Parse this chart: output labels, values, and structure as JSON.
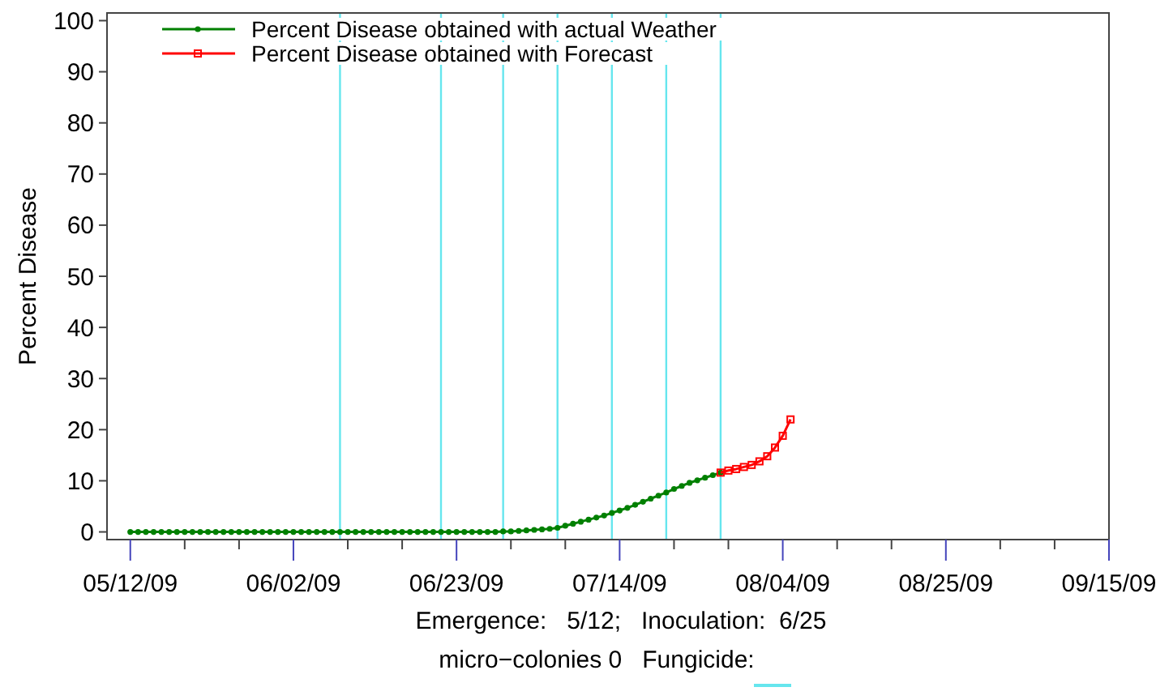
{
  "chart_data": {
    "type": "line",
    "ylabel": "Percent Disease",
    "xlim": [
      "--05-09",
      "--09-15"
    ],
    "ylim": [
      -1.5,
      101.5
    ],
    "xticks": [
      {
        "value": "--05-12",
        "label": "05/12/09"
      },
      {
        "value": "--05-19",
        "label": null
      },
      {
        "value": "--05-26",
        "label": null
      },
      {
        "value": "--06-02",
        "label": "06/02/09"
      },
      {
        "value": "--06-09",
        "label": null
      },
      {
        "value": "--06-16",
        "label": null
      },
      {
        "value": "--06-23",
        "label": "06/23/09"
      },
      {
        "value": "--06-30",
        "label": null
      },
      {
        "value": "--07-07",
        "label": null
      },
      {
        "value": "--07-14",
        "label": "07/14/09"
      },
      {
        "value": "--07-21",
        "label": null
      },
      {
        "value": "--07-28",
        "label": null
      },
      {
        "value": "--08-04",
        "label": "08/04/09"
      },
      {
        "value": "--08-11",
        "label": null
      },
      {
        "value": "--08-18",
        "label": null
      },
      {
        "value": "--08-25",
        "label": "08/25/09"
      },
      {
        "value": "--09-01",
        "label": null
      },
      {
        "value": "--09-08",
        "label": null
      },
      {
        "value": "--09-15",
        "label": "09/15/09"
      }
    ],
    "yticks": [
      0,
      10,
      20,
      30,
      40,
      50,
      60,
      70,
      80,
      90,
      100
    ],
    "legend": "top left",
    "grid": false,
    "series": [
      {
        "name": "Percent Disease obtained with actual Weather",
        "color": "#008000",
        "marker": "circle",
        "x": [
          "--05-12",
          "--05-13",
          "--05-14",
          "--05-15",
          "--05-16",
          "--05-17",
          "--05-18",
          "--05-19",
          "--05-20",
          "--05-21",
          "--05-22",
          "--05-23",
          "--05-24",
          "--05-25",
          "--05-26",
          "--05-27",
          "--05-28",
          "--05-29",
          "--05-30",
          "--05-31",
          "--06-01",
          "--06-02",
          "--06-03",
          "--06-04",
          "--06-05",
          "--06-06",
          "--06-07",
          "--06-08",
          "--06-09",
          "--06-10",
          "--06-11",
          "--06-12",
          "--06-13",
          "--06-14",
          "--06-15",
          "--06-16",
          "--06-17",
          "--06-18",
          "--06-19",
          "--06-20",
          "--06-21",
          "--06-22",
          "--06-23",
          "--06-24",
          "--06-25",
          "--06-26",
          "--06-27",
          "--06-28",
          "--06-29",
          "--06-30",
          "--07-01",
          "--07-02",
          "--07-03",
          "--07-04",
          "--07-05",
          "--07-06",
          "--07-07",
          "--07-08",
          "--07-09",
          "--07-10",
          "--07-11",
          "--07-12",
          "--07-13",
          "--07-14",
          "--07-15",
          "--07-16",
          "--07-17",
          "--07-18",
          "--07-19",
          "--07-20",
          "--07-21",
          "--07-22",
          "--07-23",
          "--07-24",
          "--07-25",
          "--07-26",
          "--07-27"
        ],
        "values": [
          0,
          0,
          0,
          0,
          0,
          0,
          0,
          0,
          0,
          0,
          0,
          0,
          0,
          0,
          0,
          0,
          0,
          0,
          0,
          0,
          0,
          0,
          0,
          0,
          0,
          0,
          0,
          0,
          0,
          0,
          0,
          0,
          0,
          0,
          0,
          0,
          0,
          0,
          0,
          0,
          0,
          0,
          0,
          0,
          0,
          0,
          0,
          0,
          0.1,
          0.1,
          0.2,
          0.3,
          0.4,
          0.5,
          0.6,
          0.8,
          1.2,
          1.6,
          2.0,
          2.4,
          2.8,
          3.2,
          3.7,
          4.2,
          4.7,
          5.3,
          5.9,
          6.5,
          7.1,
          7.7,
          8.4,
          9.0,
          9.6,
          10.1,
          10.6,
          11.1,
          11.6
        ]
      },
      {
        "name": "Percent Disease obtained with Forecast",
        "color": "#ff0000",
        "marker": "square",
        "x": [
          "--07-27",
          "--07-28",
          "--07-29",
          "--07-30",
          "--07-31",
          "--08-01",
          "--08-02",
          "--08-03",
          "--08-04",
          "--08-05"
        ],
        "values": [
          11.6,
          12.0,
          12.3,
          12.7,
          13.1,
          13.8,
          14.8,
          16.5,
          18.8,
          22
        ]
      }
    ],
    "ref_lines": [
      {
        "axis": "x",
        "value": "--06-08",
        "color": "#66e6ee"
      },
      {
        "axis": "x",
        "value": "--06-21",
        "color": "#66e6ee"
      },
      {
        "axis": "x",
        "value": "--06-29",
        "color": "#66e6ee"
      },
      {
        "axis": "x",
        "value": "--07-06",
        "color": "#66e6ee"
      },
      {
        "axis": "x",
        "value": "--07-13",
        "color": "#66e6ee"
      },
      {
        "axis": "x",
        "value": "--07-20",
        "color": "#66e6ee"
      },
      {
        "axis": "x",
        "value": "--07-27",
        "color": "#66e6ee"
      }
    ],
    "annotations": [
      "Emergence:   5/12;   Inoculation:  6/25",
      "micro−colonies 0   Fungicide:"
    ]
  }
}
